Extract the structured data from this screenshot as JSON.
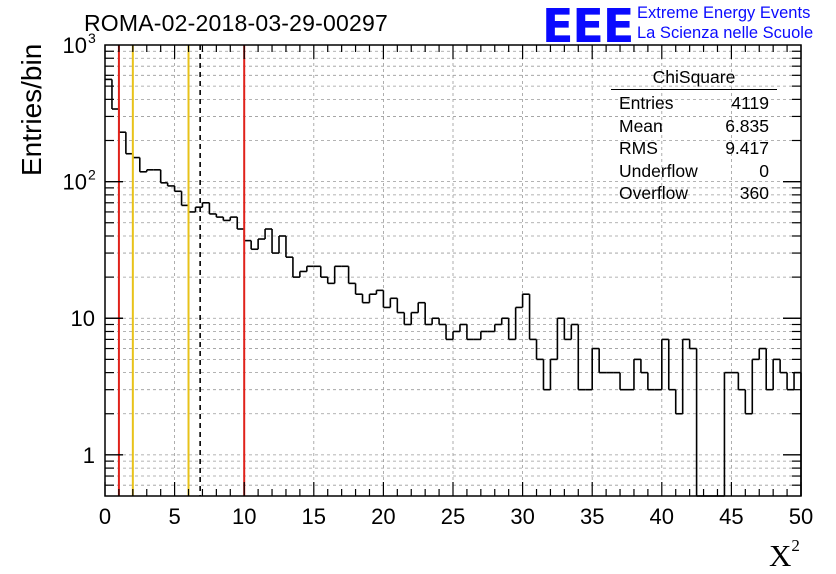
{
  "header": {
    "title": "ROMA-02-2018-03-29-00297",
    "logo_text": "EEE",
    "org_line1": "Extreme Energy Events",
    "org_line2": "La Scienza nelle Scuole",
    "brand_color": "#0a0aff"
  },
  "stats_box": {
    "name": "ChiSquare",
    "rows": [
      {
        "label": "Entries",
        "value": "4119"
      },
      {
        "label": "Mean",
        "value": "6.835"
      },
      {
        "label": "RMS",
        "value": "9.417"
      },
      {
        "label": "Underflow",
        "value": "0"
      },
      {
        "label": "Overflow",
        "value": "360"
      }
    ]
  },
  "chart_data": {
    "type": "histogram",
    "ylabel": "Entries/bin",
    "xlabel": "X",
    "xlabel_superscript": "2",
    "xlim": [
      0,
      50
    ],
    "ylim": [
      0.5,
      1000
    ],
    "yscale": "log",
    "grid": true,
    "bin_width": 0.5,
    "x_ticks": [
      "0",
      "5",
      "10",
      "15",
      "20",
      "25",
      "30",
      "35",
      "40",
      "45",
      "50"
    ],
    "y_ticks": [
      {
        "value": 1,
        "label": "1"
      },
      {
        "value": 10,
        "label": "10"
      },
      {
        "value": 100,
        "label": "10",
        "exp": "2"
      },
      {
        "value": 1000,
        "label": "10",
        "exp": "3"
      }
    ],
    "values": [
      560,
      340,
      230,
      160,
      150,
      118,
      122,
      122,
      98,
      93,
      85,
      67,
      60,
      65,
      70,
      58,
      55,
      52,
      55,
      45,
      37,
      32,
      38,
      45,
      30,
      40,
      28,
      20,
      22,
      24,
      24,
      20,
      18,
      24,
      24,
      18,
      15,
      13,
      15,
      16,
      12,
      14,
      11,
      9,
      11,
      13,
      9,
      10,
      9,
      7,
      8,
      9,
      7,
      7,
      8,
      8,
      9,
      10,
      7,
      12,
      15,
      7,
      5,
      3,
      5,
      10,
      7,
      9,
      3,
      3,
      6,
      4,
      4,
      4,
      3,
      3,
      5,
      4,
      3,
      3,
      7,
      3,
      2,
      7,
      6,
      0,
      0,
      0,
      0,
      4,
      4,
      3,
      2,
      5,
      6,
      3,
      5,
      4,
      3,
      4
    ],
    "lines": [
      {
        "x": 1,
        "color": "#e0221b",
        "style": "solid"
      },
      {
        "x": 2,
        "color": "#e8c21a",
        "style": "solid"
      },
      {
        "x": 6,
        "color": "#e8c21a",
        "style": "solid"
      },
      {
        "x": 6.835,
        "color": "#000000",
        "style": "dashed"
      },
      {
        "x": 10,
        "color": "#e0221b",
        "style": "solid"
      }
    ]
  }
}
